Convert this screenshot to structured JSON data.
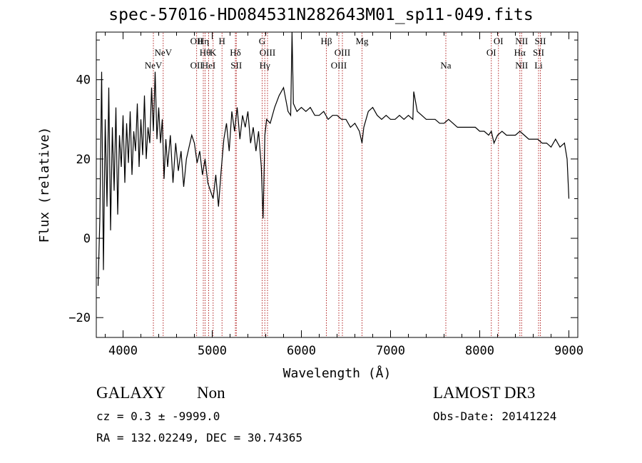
{
  "title": "spec-57016-HD084531N282643M01_sp11-049.fits",
  "info": {
    "class": "GALAXY",
    "subclass": "Non",
    "survey": "LAMOST DR3",
    "cz": "cz = 0.3 ± -9999.0",
    "obs_date": "Obs-Date: 20141224",
    "radec": "RA = 132.02249, DEC =  30.74365"
  },
  "chart_data": {
    "type": "line",
    "title": "spec-57016-HD084531N282643M01_sp11-049.fits",
    "xlabel": "Wavelength (Å)",
    "ylabel": "Flux (relative)",
    "xlim": [
      3700,
      9100
    ],
    "ylim": [
      -25,
      52
    ],
    "x_ticks": [
      "4000",
      "5000",
      "6000",
      "7000",
      "8000",
      "9000"
    ],
    "y_ticks": [
      "−20",
      "0",
      "20",
      "40"
    ],
    "grid": false,
    "line_color": "#000000",
    "marker_color": "#b22222",
    "series": [
      {
        "x": [
          3720,
          3740,
          3760,
          3780,
          3800,
          3820,
          3840,
          3860,
          3880,
          3900,
          3920,
          3940,
          3960,
          3980,
          4000,
          4020,
          4040,
          4060,
          4080,
          4100,
          4120,
          4140,
          4160,
          4180,
          4200,
          4220,
          4240,
          4260,
          4280,
          4300,
          4320,
          4340,
          4360,
          4380,
          4400,
          4420,
          4440,
          4460,
          4480,
          4500,
          4530,
          4560,
          4590,
          4620,
          4650,
          4680,
          4710,
          4740,
          4770,
          4800,
          4830,
          4860,
          4890,
          4920,
          4950,
          4980,
          5010,
          5040,
          5070,
          5100,
          5130,
          5160,
          5190,
          5220,
          5250,
          5280,
          5310,
          5340,
          5370,
          5400,
          5430,
          5460,
          5490,
          5520,
          5550,
          5570,
          5590,
          5610,
          5650,
          5700,
          5750,
          5800,
          5850,
          5880,
          5895,
          5910,
          5950,
          6000,
          6050,
          6100,
          6150,
          6200,
          6250,
          6300,
          6350,
          6400,
          6450,
          6500,
          6550,
          6600,
          6650,
          6680,
          6700,
          6750,
          6800,
          6850,
          6900,
          6950,
          7000,
          7050,
          7100,
          7150,
          7200,
          7250,
          7260,
          7300,
          7350,
          7400,
          7450,
          7500,
          7550,
          7600,
          7650,
          7700,
          7750,
          7800,
          7850,
          7900,
          7950,
          8000,
          8050,
          8100,
          8130,
          8160,
          8200,
          8250,
          8300,
          8350,
          8400,
          8450,
          8500,
          8550,
          8600,
          8650,
          8700,
          8750,
          8800,
          8850,
          8900,
          8950,
          8980,
          9000
        ],
        "y": [
          -12,
          5,
          42,
          -8,
          30,
          8,
          38,
          2,
          28,
          12,
          33,
          6,
          26,
          18,
          31,
          14,
          29,
          19,
          32,
          16,
          27,
          22,
          34,
          18,
          30,
          21,
          36,
          20,
          28,
          24,
          38,
          27,
          42,
          25,
          33,
          24,
          30,
          15,
          25,
          18,
          26,
          14,
          24,
          17,
          22,
          13,
          20,
          23,
          26,
          24,
          19,
          22,
          16,
          20,
          14,
          12,
          10,
          16,
          8,
          17,
          25,
          29,
          22,
          32,
          27,
          33,
          25,
          31,
          28,
          32,
          24,
          28,
          22,
          27,
          18,
          5,
          26,
          30,
          29,
          33,
          36,
          38,
          32,
          31,
          55,
          34,
          32,
          33,
          32,
          33,
          31,
          31,
          32,
          30,
          31,
          31,
          30,
          30,
          28,
          29,
          27,
          24,
          28,
          32,
          33,
          31,
          30,
          31,
          30,
          30,
          31,
          30,
          31,
          30,
          37,
          32,
          31,
          30,
          30,
          30,
          29,
          29,
          30,
          29,
          28,
          28,
          28,
          28,
          28,
          27,
          27,
          26,
          27,
          24,
          26,
          27,
          26,
          26,
          26,
          27,
          26,
          25,
          25,
          25,
          24,
          24,
          23,
          25,
          23,
          24,
          20,
          10
        ]
      }
    ],
    "lines": [
      {
        "wave": 4340,
        "label": "NeV",
        "row": 2
      },
      {
        "wave": 4450,
        "label": "NeV",
        "row": 1
      },
      {
        "wave": 4825,
        "label": "OII",
        "row": 0
      },
      {
        "wave": 4825,
        "label": "OII",
        "row": 2
      },
      {
        "wave": 4900,
        "label": "Hη",
        "row": 0
      },
      {
        "wave": 4920,
        "label": "Hθ",
        "row": 1
      },
      {
        "wave": 4960,
        "label": "HeI",
        "row": 2
      },
      {
        "wave": 5010,
        "label": "K",
        "row": 1
      },
      {
        "wave": 5110,
        "label": "H",
        "row": 0
      },
      {
        "wave": 5260,
        "label": "Hδ",
        "row": 1
      },
      {
        "wave": 5270,
        "label": "SII",
        "row": 2
      },
      {
        "wave": 5560,
        "label": "G",
        "row": 0
      },
      {
        "wave": 5620,
        "label": "OIII",
        "row": 1
      },
      {
        "wave": 5590,
        "label": "Hγ",
        "row": 2
      },
      {
        "wave": 6280,
        "label": "Hβ",
        "row": 0
      },
      {
        "wave": 6460,
        "label": "OIII",
        "row": 1
      },
      {
        "wave": 6420,
        "label": "OIII",
        "row": 2
      },
      {
        "wave": 6680,
        "label": "Mg",
        "row": 0
      },
      {
        "wave": 7620,
        "label": "Na",
        "row": 2
      },
      {
        "wave": 8210,
        "label": "OI",
        "row": 0
      },
      {
        "wave": 8130,
        "label": "OI",
        "row": 1
      },
      {
        "wave": 8470,
        "label": "NII",
        "row": 0
      },
      {
        "wave": 8450,
        "label": "Hα",
        "row": 1
      },
      {
        "wave": 8470,
        "label": "NII",
        "row": 2
      },
      {
        "wave": 8680,
        "label": "SII",
        "row": 0
      },
      {
        "wave": 8660,
        "label": "SII",
        "row": 1
      },
      {
        "wave": 8660,
        "label": "Li",
        "row": 2
      }
    ]
  }
}
